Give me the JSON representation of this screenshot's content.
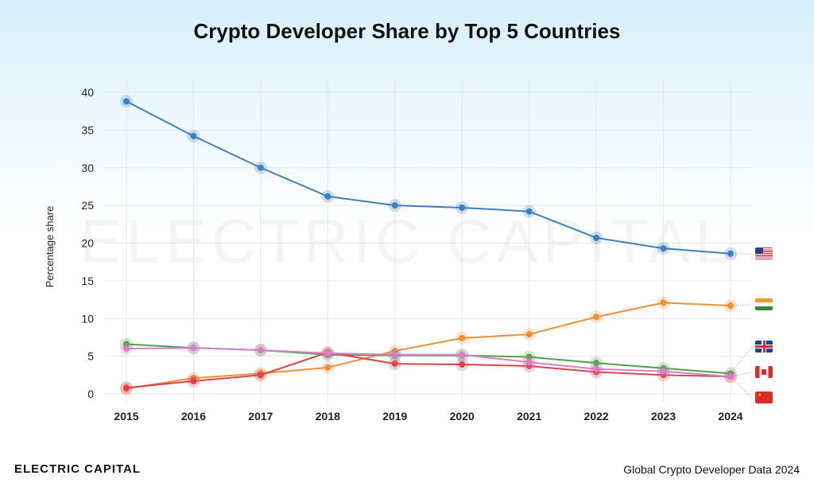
{
  "chart_data": {
    "type": "line",
    "title": "Crypto Developer Share by Top 5 Countries",
    "xlabel": "",
    "ylabel": "Percentage share",
    "x": [
      2015,
      2016,
      2017,
      2018,
      2019,
      2020,
      2021,
      2022,
      2023,
      2024
    ],
    "ylim": [
      0,
      40
    ],
    "yticks": [
      0,
      5,
      10,
      15,
      20,
      25,
      30,
      35,
      40
    ],
    "grid": true,
    "legend": "flags at right end of lines",
    "series": [
      {
        "flag": "United States",
        "color": "#3f7fbf",
        "values": [
          38.8,
          34.2,
          30.0,
          26.2,
          25.0,
          24.7,
          24.2,
          20.7,
          19.3,
          18.6
        ]
      },
      {
        "flag": "India",
        "color": "#ef8f3a",
        "values": [
          0.7,
          2.1,
          2.7,
          3.5,
          5.7,
          7.4,
          7.9,
          10.2,
          12.1,
          11.7
        ]
      },
      {
        "flag": "United Kingdom",
        "color": "#4fa34a",
        "values": [
          6.6,
          6.1,
          5.8,
          5.2,
          5.1,
          5.1,
          4.9,
          4.1,
          3.4,
          2.7
        ]
      },
      {
        "flag": "Canada",
        "color": "#d9434a",
        "values": [
          0.8,
          1.7,
          2.5,
          5.5,
          4.0,
          3.9,
          3.7,
          2.9,
          2.5,
          2.3
        ]
      },
      {
        "flag": "China",
        "color": "#d97fc9",
        "values": [
          6.0,
          6.1,
          5.8,
          5.4,
          5.2,
          5.2,
          4.2,
          3.3,
          3.0,
          2.3
        ]
      }
    ]
  },
  "watermark": "ELECTRIC CAPITAL",
  "footer": {
    "logo": "ELECTRIC CAPITAL",
    "source": "Global Crypto Developer Data 2024"
  }
}
